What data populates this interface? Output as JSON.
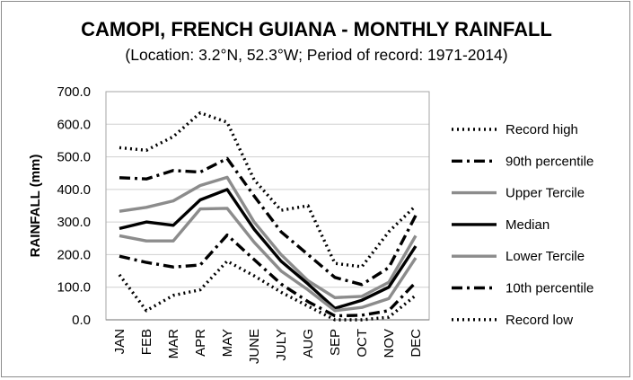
{
  "chart_data": {
    "type": "line",
    "title": "CAMOPI, FRENCH GUIANA - MONTHLY RAINFALL",
    "subtitle": "(Location: 3.2°N, 52.3°W; Period of record: 1971-2014)",
    "ylabel": "RAINFALL (mm)",
    "xlabel": "",
    "ylim": [
      0,
      700
    ],
    "yticks": [
      "0.0",
      "100.0",
      "200.0",
      "300.0",
      "400.0",
      "500.0",
      "600.0",
      "700.0"
    ],
    "categories": [
      "JAN",
      "FEB",
      "MAR",
      "APR",
      "MAY",
      "JUNE",
      "JULY",
      "AUG",
      "SEP",
      "OCT",
      "NOV",
      "DEC"
    ],
    "grid": true,
    "legend_position": "right",
    "series": [
      {
        "name": "Record high",
        "color": "#000000",
        "style": "dotted",
        "values": [
          528,
          520,
          562,
          635,
          606,
          430,
          336,
          350,
          173,
          163,
          270,
          350
        ]
      },
      {
        "name": "90th percentile",
        "color": "#000000",
        "style": "dashdot",
        "values": [
          436,
          432,
          458,
          453,
          495,
          380,
          270,
          200,
          130,
          108,
          160,
          320
        ]
      },
      {
        "name": "Upper Tercile",
        "color": "#8c8c8c",
        "style": "solid",
        "values": [
          333,
          345,
          365,
          412,
          437,
          300,
          200,
          120,
          68,
          72,
          115,
          258
        ]
      },
      {
        "name": "Median",
        "color": "#000000",
        "style": "solid",
        "values": [
          280,
          300,
          290,
          368,
          400,
          278,
          180,
          110,
          35,
          60,
          100,
          226
        ]
      },
      {
        "name": "Lower Tercile",
        "color": "#8c8c8c",
        "style": "solid",
        "values": [
          258,
          242,
          242,
          340,
          342,
          238,
          150,
          92,
          28,
          38,
          65,
          190
        ]
      },
      {
        "name": "10th percentile",
        "color": "#000000",
        "style": "dashdot",
        "values": [
          195,
          176,
          162,
          168,
          260,
          185,
          110,
          56,
          12,
          14,
          28,
          115
        ]
      },
      {
        "name": "Record low",
        "color": "#000000",
        "style": "dotted",
        "values": [
          138,
          28,
          75,
          92,
          180,
          135,
          85,
          42,
          0,
          0,
          8,
          75
        ]
      }
    ]
  }
}
